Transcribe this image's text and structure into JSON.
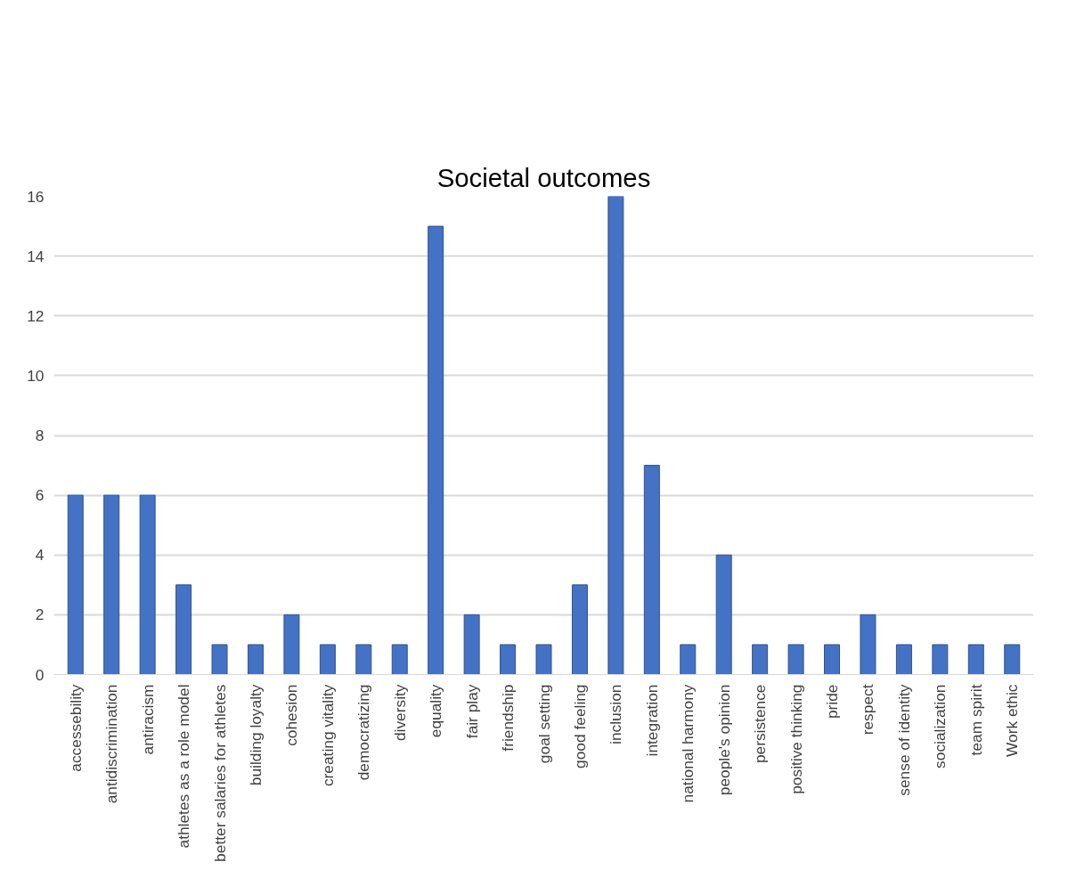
{
  "chart_data": {
    "type": "bar",
    "title": "Societal outcomes",
    "categories": [
      "accessebility",
      "antidiscrimination",
      "antiracism",
      "athletes as a role model",
      "better salaries for athletes",
      "building loyalty",
      "cohesion",
      "creating vitality",
      "democratizing",
      "diversity",
      "equality",
      "fair play",
      "friendship",
      "goal setting",
      "good feeling",
      "inclusion",
      "integration",
      "national harmony",
      "people's opinion",
      "persistence",
      "positive thinking",
      "pride",
      "respect",
      "sense of identity",
      "socialization",
      "team spirit",
      "Work ethic"
    ],
    "values": [
      6,
      6,
      6,
      3,
      1,
      1,
      2,
      1,
      1,
      1,
      15,
      2,
      1,
      1,
      3,
      16,
      7,
      1,
      4,
      1,
      1,
      1,
      2,
      1,
      1,
      1,
      1
    ],
    "color": "#4472c4",
    "ylim": [
      0,
      16
    ],
    "yticks": [
      0,
      2,
      4,
      6,
      8,
      10,
      12,
      14,
      16
    ],
    "grid": "y"
  }
}
